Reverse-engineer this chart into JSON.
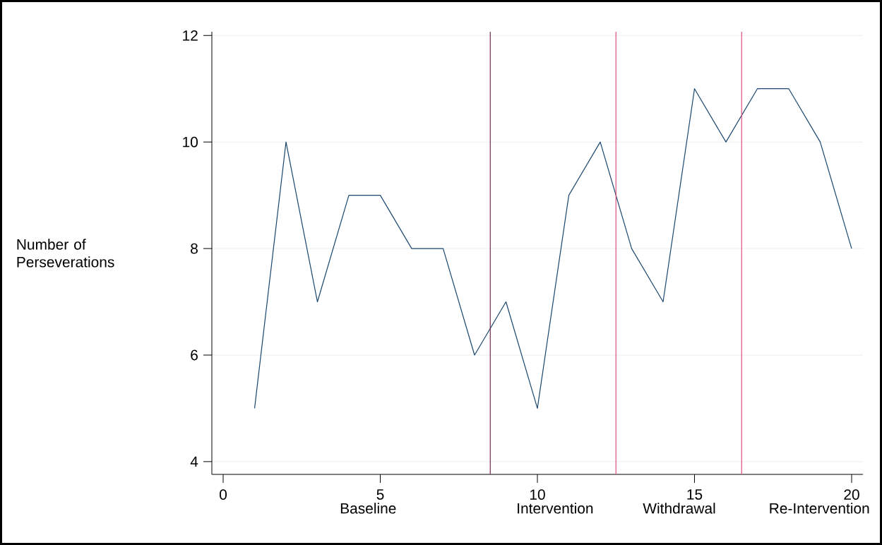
{
  "chart_data": {
    "type": "line",
    "ylabel": "Number of Perseverations",
    "x": [
      1,
      2,
      3,
      4,
      5,
      6,
      7,
      8,
      9,
      10,
      11,
      12,
      13,
      14,
      15,
      16,
      17,
      18,
      19,
      20
    ],
    "values": [
      5,
      10,
      7,
      9,
      9,
      8,
      8,
      6,
      7,
      5,
      9,
      10,
      8,
      7,
      11,
      10,
      11,
      11,
      10,
      8
    ],
    "color": "#1a476f",
    "xlim": [
      -0.36,
      20.36
    ],
    "ylim": [
      3.76,
      12.07
    ],
    "xticks": [
      0,
      5,
      10,
      15,
      20
    ],
    "yticks": [
      4,
      6,
      8,
      10,
      12
    ],
    "grid": "y",
    "marker": "none",
    "line_style": "solid",
    "ref_lines": [
      {
        "axis": "x",
        "value": 8.5,
        "color": "#6b2c4f"
      },
      {
        "axis": "x",
        "value": 12.5,
        "color": "#e0507a"
      },
      {
        "axis": "x",
        "value": 16.5,
        "color": "#e0507a"
      }
    ],
    "annotations": [
      "Baseline",
      "Intervention",
      "Withdrawal",
      "Re-Intervention"
    ]
  }
}
